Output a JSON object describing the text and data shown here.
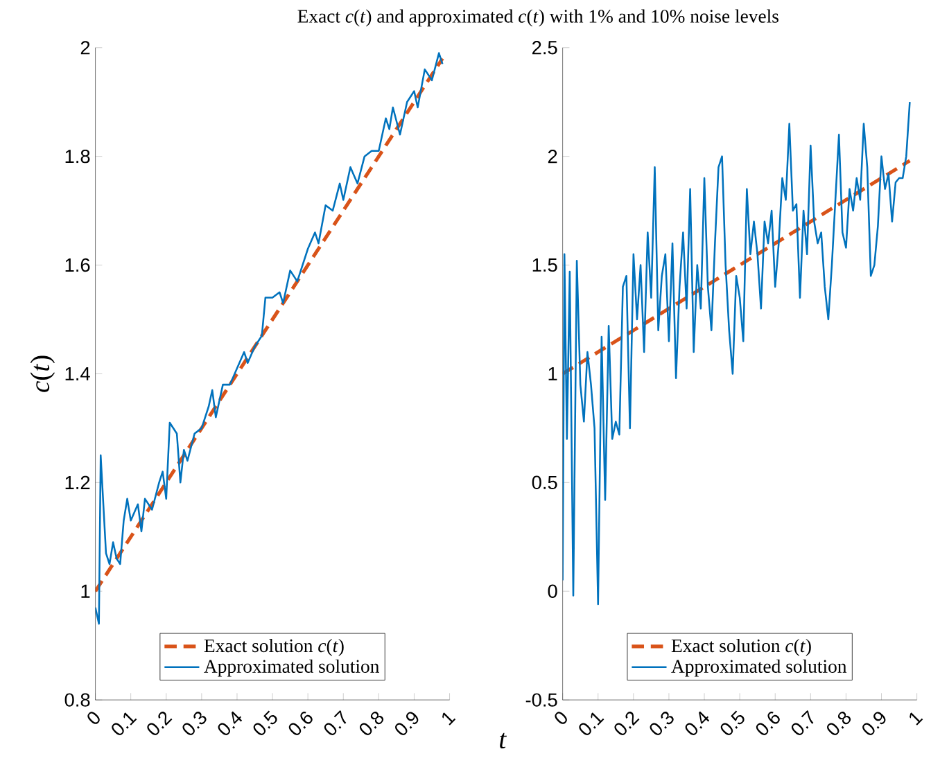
{
  "chart_data": [
    {
      "type": "line",
      "title": "Exact *c*(*t*) and approximated *c*(*t*) with 1% and 10% noise levels",
      "ylabel": "*c*(*t*)",
      "xlabel": "*t*",
      "xlim": [
        0,
        1
      ],
      "ylim": [
        0.8,
        2
      ],
      "xticks": [
        0,
        0.1,
        0.2,
        0.3,
        0.4,
        0.5,
        0.6,
        0.7,
        0.8,
        0.9,
        1
      ],
      "yticks": [
        0.8,
        1,
        1.2,
        1.4,
        1.6,
        1.8,
        2
      ],
      "legend": "bottom",
      "marker": "none",
      "grid": false,
      "series": [
        {
          "name": "Exact solution *c*(*t*)",
          "color": "#d95319",
          "line_style": "dashed",
          "x": [
            0,
            0.98
          ],
          "values": [
            1,
            1.98
          ]
        },
        {
          "name": "Approximated solution",
          "color": "#0072bd",
          "line_style": "solid",
          "x": [
            0,
            0.01,
            0.015,
            0.03,
            0.04,
            0.05,
            0.06,
            0.07,
            0.08,
            0.09,
            0.1,
            0.12,
            0.13,
            0.14,
            0.16,
            0.18,
            0.19,
            0.2,
            0.21,
            0.23,
            0.24,
            0.25,
            0.26,
            0.28,
            0.3,
            0.32,
            0.33,
            0.34,
            0.36,
            0.38,
            0.4,
            0.42,
            0.43,
            0.45,
            0.47,
            0.48,
            0.5,
            0.52,
            0.53,
            0.55,
            0.57,
            0.6,
            0.62,
            0.63,
            0.65,
            0.67,
            0.69,
            0.7,
            0.72,
            0.74,
            0.76,
            0.78,
            0.8,
            0.82,
            0.83,
            0.84,
            0.86,
            0.88,
            0.9,
            0.91,
            0.93,
            0.95,
            0.97,
            0.98
          ],
          "values": [
            0.97,
            0.94,
            1.25,
            1.07,
            1.05,
            1.09,
            1.06,
            1.05,
            1.13,
            1.17,
            1.13,
            1.16,
            1.11,
            1.17,
            1.15,
            1.2,
            1.22,
            1.17,
            1.31,
            1.29,
            1.2,
            1.26,
            1.24,
            1.29,
            1.3,
            1.34,
            1.37,
            1.32,
            1.38,
            1.38,
            1.41,
            1.44,
            1.42,
            1.45,
            1.47,
            1.54,
            1.54,
            1.55,
            1.53,
            1.59,
            1.57,
            1.63,
            1.66,
            1.64,
            1.71,
            1.7,
            1.75,
            1.72,
            1.78,
            1.75,
            1.8,
            1.81,
            1.81,
            1.87,
            1.85,
            1.89,
            1.84,
            1.9,
            1.92,
            1.89,
            1.96,
            1.94,
            1.99,
            1.97
          ]
        }
      ]
    },
    {
      "type": "line",
      "xlim": [
        0,
        1
      ],
      "ylim": [
        -0.5,
        2.5
      ],
      "xticks": [
        0,
        0.1,
        0.2,
        0.3,
        0.4,
        0.5,
        0.6,
        0.7,
        0.8,
        0.9,
        1
      ],
      "yticks": [
        -0.5,
        0,
        0.5,
        1,
        1.5,
        2,
        2.5
      ],
      "legend": "bottom",
      "marker": "none",
      "grid": false,
      "series": [
        {
          "name": "Exact solution *c*(*t*)",
          "color": "#d95319",
          "line_style": "dashed",
          "x": [
            0,
            0.98
          ],
          "values": [
            1,
            1.98
          ]
        },
        {
          "name": "Approximated solution",
          "color": "#0072bd",
          "line_style": "solid",
          "x": [
            0,
            0.005,
            0.012,
            0.02,
            0.03,
            0.04,
            0.05,
            0.06,
            0.07,
            0.08,
            0.09,
            0.1,
            0.11,
            0.12,
            0.13,
            0.14,
            0.15,
            0.16,
            0.17,
            0.18,
            0.19,
            0.2,
            0.21,
            0.22,
            0.23,
            0.24,
            0.25,
            0.26,
            0.27,
            0.28,
            0.29,
            0.3,
            0.31,
            0.32,
            0.33,
            0.34,
            0.35,
            0.36,
            0.37,
            0.38,
            0.39,
            0.4,
            0.41,
            0.42,
            0.43,
            0.44,
            0.45,
            0.46,
            0.47,
            0.48,
            0.49,
            0.5,
            0.51,
            0.52,
            0.53,
            0.54,
            0.55,
            0.56,
            0.57,
            0.58,
            0.59,
            0.6,
            0.61,
            0.62,
            0.63,
            0.64,
            0.65,
            0.66,
            0.67,
            0.68,
            0.69,
            0.7,
            0.71,
            0.72,
            0.73,
            0.74,
            0.75,
            0.76,
            0.77,
            0.78,
            0.79,
            0.8,
            0.81,
            0.82,
            0.83,
            0.84,
            0.85,
            0.86,
            0.87,
            0.88,
            0.89,
            0.9,
            0.91,
            0.92,
            0.93,
            0.94,
            0.95,
            0.96,
            0.97,
            0.98
          ],
          "values": [
            0.05,
            1.55,
            0.7,
            1.47,
            -0.02,
            1.52,
            0.95,
            0.78,
            1.1,
            0.95,
            0.75,
            -0.06,
            1.17,
            0.42,
            1.22,
            0.7,
            0.78,
            0.72,
            1.4,
            1.45,
            0.75,
            1.55,
            1.25,
            1.5,
            1.1,
            1.65,
            1.35,
            1.95,
            1.2,
            1.45,
            1.55,
            1.15,
            1.6,
            0.98,
            1.4,
            1.65,
            1.3,
            1.85,
            1.1,
            1.5,
            1.3,
            1.9,
            1.4,
            1.2,
            1.6,
            1.95,
            2.0,
            1.5,
            1.2,
            1.0,
            1.45,
            1.35,
            1.15,
            1.85,
            1.55,
            1.7,
            1.55,
            1.3,
            1.7,
            1.6,
            1.75,
            1.4,
            1.6,
            1.9,
            1.8,
            2.15,
            1.75,
            1.78,
            1.35,
            1.75,
            1.55,
            2.05,
            1.7,
            1.6,
            1.65,
            1.4,
            1.25,
            1.5,
            1.8,
            2.1,
            1.65,
            1.58,
            1.85,
            1.75,
            1.9,
            1.8,
            2.15,
            1.95,
            1.45,
            1.5,
            1.68,
            2.0,
            1.85,
            1.92,
            1.7,
            1.88,
            1.9,
            1.9,
            2.0,
            2.25
          ]
        }
      ]
    }
  ]
}
